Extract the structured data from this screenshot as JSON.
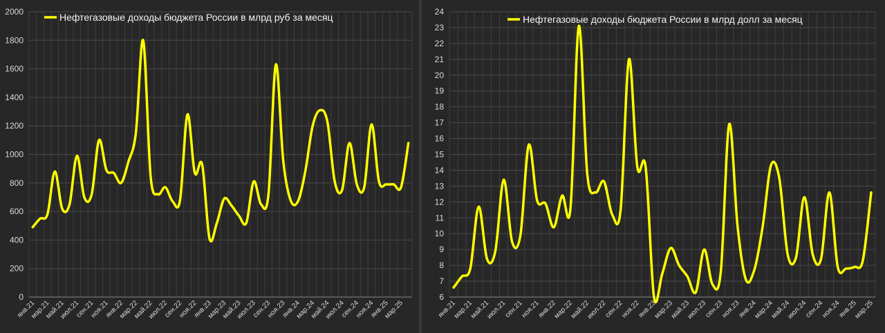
{
  "chart_data": [
    {
      "type": "line",
      "ylim": [
        0,
        2000
      ],
      "yticks": [
        0,
        200,
        400,
        600,
        800,
        1000,
        1200,
        1400,
        1600,
        1800,
        2000
      ],
      "tick_labels": [
        "янв.21",
        "мар.21",
        "май.21",
        "июл.21",
        "сен.21",
        "ноя.21",
        "янв.22",
        "мар.22",
        "май.22",
        "июл.22",
        "сен.22",
        "ноя.22",
        "янв.23",
        "мар.23",
        "май.23",
        "июл.23",
        "сен.23",
        "ноя.23",
        "янв.24",
        "мар.24",
        "май.24",
        "июл.24",
        "сен.24",
        "ноя.24",
        "янв.25",
        "мар.25"
      ],
      "grid": true,
      "legend": "top-left",
      "series": [
        {
          "name": "Нефтегазовые доходы бюджета России в млрд руб за месяц",
          "color": "#ffff00",
          "values": [
            490,
            550,
            580,
            880,
            620,
            650,
            990,
            700,
            720,
            1100,
            890,
            870,
            800,
            950,
            1150,
            1800,
            850,
            720,
            770,
            670,
            680,
            1280,
            870,
            930,
            410,
            520,
            690,
            640,
            570,
            520,
            810,
            650,
            720,
            1630,
            960,
            680,
            670,
            880,
            1200,
            1310,
            1230,
            810,
            750,
            1080,
            790,
            770,
            1210,
            810,
            790,
            790,
            770,
            1080
          ]
        }
      ]
    },
    {
      "type": "line",
      "ylim": [
        6,
        24
      ],
      "yticks": [
        6,
        7,
        8,
        9,
        10,
        11,
        12,
        13,
        14,
        15,
        16,
        17,
        18,
        19,
        20,
        21,
        22,
        23,
        24
      ],
      "tick_labels": [
        "янв.21",
        "мар.21",
        "май.21",
        "июл.21",
        "сен.21",
        "ноя.21",
        "янв.22",
        "мар.22",
        "май.22",
        "июл.22",
        "сен.22",
        "ноя.22",
        "янв.23",
        "мар.23",
        "май.23",
        "июл.23",
        "сен.23",
        "ноя.23",
        "янв.24",
        "мар.24",
        "май.24",
        "июл.24",
        "сен.24",
        "ноя.24",
        "янв.25",
        "мар.25"
      ],
      "grid": true,
      "legend": "top-center",
      "series": [
        {
          "name": "Нефтегазовые доходы бюджета России в млрд долл за месяц",
          "color": "#ffff00",
          "values": [
            6.6,
            7.3,
            7.8,
            11.7,
            8.4,
            8.9,
            13.4,
            9.5,
            9.9,
            15.6,
            12.1,
            11.9,
            10.4,
            12.4,
            11.6,
            23.1,
            13.8,
            12.6,
            13.3,
            11.2,
            11.5,
            21.0,
            14.2,
            14.2,
            6.0,
            7.5,
            9.1,
            8.0,
            7.3,
            6.3,
            9.0,
            6.8,
            7.6,
            16.9,
            10.5,
            7.1,
            7.7,
            10.4,
            14.3,
            13.5,
            8.7,
            8.5,
            12.3,
            8.7,
            8.4,
            12.6,
            7.9,
            7.8,
            7.9,
            8.3,
            12.6
          ]
        }
      ]
    }
  ]
}
